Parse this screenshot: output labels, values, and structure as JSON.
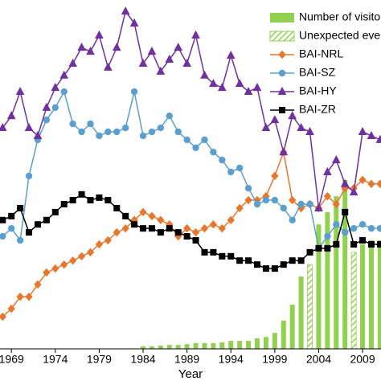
{
  "chart_data": {
    "type": "line",
    "x_label": "Year",
    "x": [
      1968,
      1969,
      1970,
      1971,
      1972,
      1973,
      1974,
      1975,
      1976,
      1977,
      1978,
      1979,
      1980,
      1981,
      1982,
      1983,
      1984,
      1985,
      1986,
      1987,
      1988,
      1989,
      1990,
      1991,
      1992,
      1993,
      1994,
      1995,
      1996,
      1997,
      1998,
      1999,
      2000,
      2001,
      2002,
      2003,
      2004,
      2005,
      2006,
      2007,
      2008,
      2009,
      2010,
      2011
    ],
    "xlim": [
      1967.7,
      2011.1
    ],
    "xticks": [
      1969,
      1974,
      1979,
      1984,
      1989,
      1994,
      1999,
      2004,
      2009
    ],
    "ylim": [
      0,
      100
    ],
    "bars": [
      {
        "name": "Number of visito",
        "color": "#92d050",
        "pattern": "solid",
        "values": [
          null,
          null,
          null,
          null,
          null,
          null,
          null,
          null,
          null,
          null,
          null,
          null,
          null,
          null,
          null,
          null,
          0.7,
          0.7,
          0.9,
          1.1,
          1.1,
          1.3,
          1.6,
          1.6,
          1.6,
          1.8,
          2.2,
          2.2,
          2.2,
          2.9,
          3.3,
          4.4,
          7.8,
          12.2,
          20,
          null,
          34.4,
          37.8,
          42.2,
          46.7,
          null,
          28.9,
          30,
          30
        ]
      },
      {
        "name": "Unexpected eve",
        "color": "#92d050",
        "pattern": "hatch",
        "values": [
          null,
          null,
          null,
          null,
          null,
          null,
          null,
          null,
          null,
          null,
          null,
          null,
          null,
          null,
          null,
          null,
          null,
          null,
          null,
          null,
          null,
          null,
          null,
          null,
          null,
          null,
          null,
          null,
          null,
          null,
          null,
          null,
          null,
          null,
          null,
          23.3,
          null,
          null,
          null,
          null,
          26.7,
          null,
          null,
          null
        ]
      }
    ],
    "series": [
      {
        "name": "BAI-NRL",
        "color": "#e8772e",
        "marker": "diamond",
        "values": [
          8.9,
          11.1,
          14.4,
          14.4,
          17.8,
          21.1,
          22.2,
          23.3,
          24.4,
          25.6,
          26.7,
          28.9,
          30,
          32.2,
          33.3,
          35.6,
          37.8,
          36.7,
          35.6,
          34.4,
          31.1,
          33.3,
          32.2,
          33.3,
          34.4,
          33.3,
          35.6,
          38.9,
          41.1,
          41.1,
          42.2,
          47.8,
          54.4,
          41.1,
          38.9,
          40,
          38.9,
          42.2,
          40,
          44.4,
          44.4,
          46.7,
          45.6,
          45.6
        ]
      },
      {
        "name": "BAI-SZ",
        "color": "#5b9fcf",
        "marker": "circle",
        "values": [
          31.1,
          33.3,
          30,
          47.8,
          57.8,
          63.3,
          66.7,
          71.1,
          62.2,
          60,
          62.2,
          58.9,
          60,
          60,
          61.1,
          71.1,
          58.9,
          60,
          61.1,
          64.4,
          60,
          57.8,
          55.6,
          57.8,
          54.4,
          52.2,
          48.9,
          50,
          44.4,
          40,
          41.1,
          41.1,
          38.9,
          35.6,
          40,
          40,
          27.8,
          31.1,
          34.4,
          32.2,
          33.3,
          34.4,
          33.3,
          33.3
        ]
      },
      {
        "name": "BAI-HY",
        "color": "#7030a0",
        "marker": "triangle",
        "values": [
          61.1,
          64.4,
          71.1,
          61.1,
          58.9,
          66.7,
          72.2,
          75.6,
          78.9,
          83.3,
          82.2,
          86.7,
          77.8,
          83.3,
          93.3,
          90,
          78.9,
          82.2,
          76.7,
          80,
          83.3,
          78.9,
          86.7,
          75.6,
          73.3,
          72.2,
          81.1,
          73.3,
          71.1,
          72.2,
          61.1,
          63.3,
          54.4,
          64.4,
          61.1,
          60,
          38.9,
          48.9,
          52.2,
          45.6,
          43.3,
          60,
          58.9,
          57.8
        ]
      },
      {
        "name": "BAI-ZR",
        "color": "#000000",
        "marker": "square",
        "values": [
          35.6,
          36.7,
          38.9,
          32.2,
          34.4,
          35.6,
          37.8,
          40,
          41.1,
          42.7,
          41.1,
          41.8,
          41.1,
          38.9,
          36.7,
          34.4,
          33.3,
          33.3,
          32.2,
          33.3,
          32.2,
          31.1,
          30,
          26.7,
          26.7,
          25.6,
          25.6,
          24.4,
          24.4,
          23.3,
          22.2,
          22.2,
          23.3,
          24.4,
          24.4,
          26.7,
          27.8,
          27.8,
          28.9,
          37.8,
          28.9,
          30,
          28.9,
          28.9
        ]
      }
    ]
  }
}
